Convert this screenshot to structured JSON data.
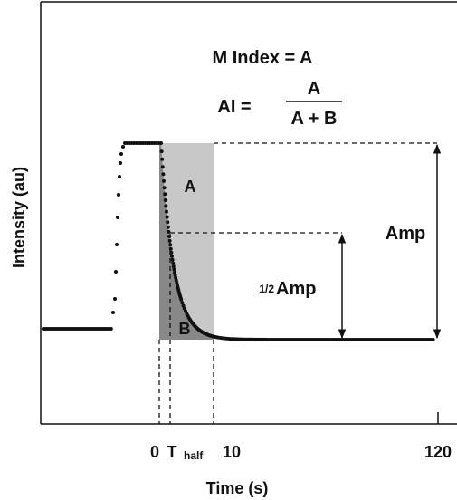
{
  "formula": {
    "m_index": "M Index = A",
    "ai_label": "AI =",
    "numerator": "A",
    "denominator": "A + B"
  },
  "regions": {
    "a": "A",
    "b": "B"
  },
  "amplitude": {
    "full": "Amp",
    "half_prefix": "1/2",
    "half": "Amp"
  },
  "axes": {
    "y_label": "Intensity (au)",
    "x_label": "Time (s)",
    "x_ticks": {
      "zero": "0",
      "t_half": "T",
      "t_half_sub": "half",
      "ten": "10",
      "end": "120"
    }
  }
}
